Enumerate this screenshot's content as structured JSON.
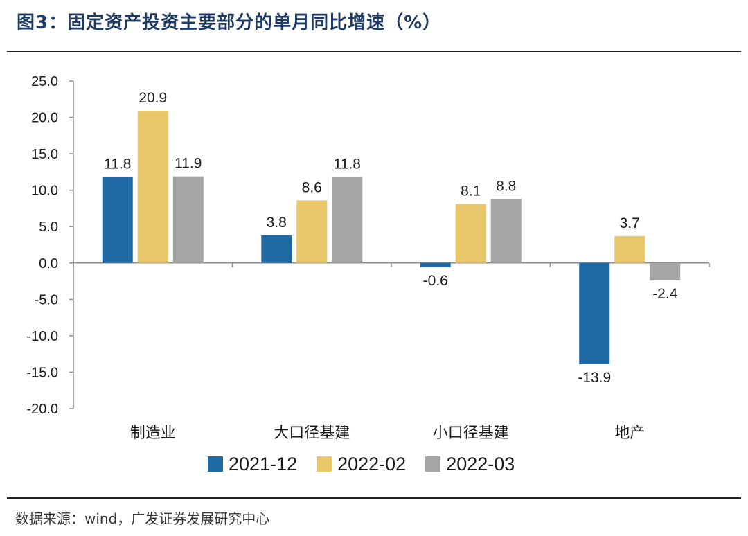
{
  "title": "图3：固定资产投资主要部分的单月同比增速（%）",
  "source": "数据来源：wind，广发证券发展研究中心",
  "chart_data": {
    "type": "bar",
    "categories": [
      "制造业",
      "大口径基建",
      "小口径基建",
      "地产"
    ],
    "series": [
      {
        "name": "2021-12",
        "color": "#1f6aa5",
        "values": [
          11.8,
          3.8,
          -0.6,
          -13.9
        ],
        "labels": [
          "11.8",
          "3.8",
          "-0.6",
          "-13.9"
        ]
      },
      {
        "name": "2022-02",
        "color": "#e8c86a",
        "values": [
          20.9,
          8.6,
          8.1,
          3.7
        ],
        "labels": [
          "20.9",
          "8.6",
          "8.1",
          "3.7"
        ]
      },
      {
        "name": "2022-03",
        "color": "#a6a6a6",
        "values": [
          11.9,
          11.8,
          8.8,
          -2.4
        ],
        "labels": [
          "11.9",
          "11.8",
          "8.8",
          "-2.4"
        ]
      }
    ],
    "ylim": [
      -20,
      25
    ],
    "yticks": [
      "25.0",
      "20.0",
      "15.0",
      "10.0",
      "5.0",
      "0.0",
      "-5.0",
      "-10.0",
      "-15.0",
      "-20.0"
    ],
    "ytick_values": [
      25,
      20,
      15,
      10,
      5,
      0,
      -5,
      -10,
      -15,
      -20
    ],
    "grid": false,
    "legend_position": "bottom"
  }
}
